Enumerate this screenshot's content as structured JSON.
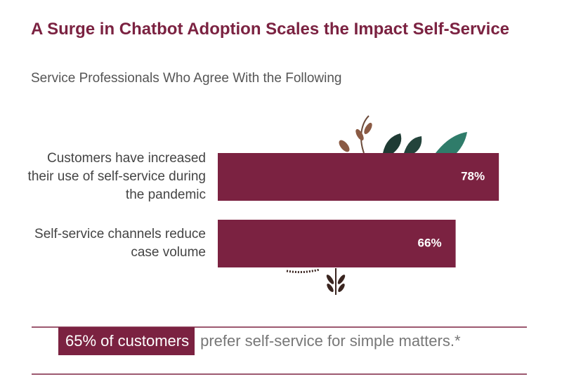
{
  "chart_data": {
    "type": "bar",
    "orientation": "horizontal",
    "title": "A Surge in Chatbot Adoption Scales the Impact Self-Service",
    "subtitle": "Service Professionals Who Agree With the Following",
    "categories": [
      "Customers have increased their use of self-service during the pandemic",
      "Self-service channels reduce case volume"
    ],
    "values": [
      78,
      66
    ],
    "value_labels": [
      "78%",
      "66%"
    ],
    "color": "#7b2241"
  },
  "footer": {
    "highlight": "65% of customers",
    "text": "prefer self-service for simple matters.*"
  }
}
